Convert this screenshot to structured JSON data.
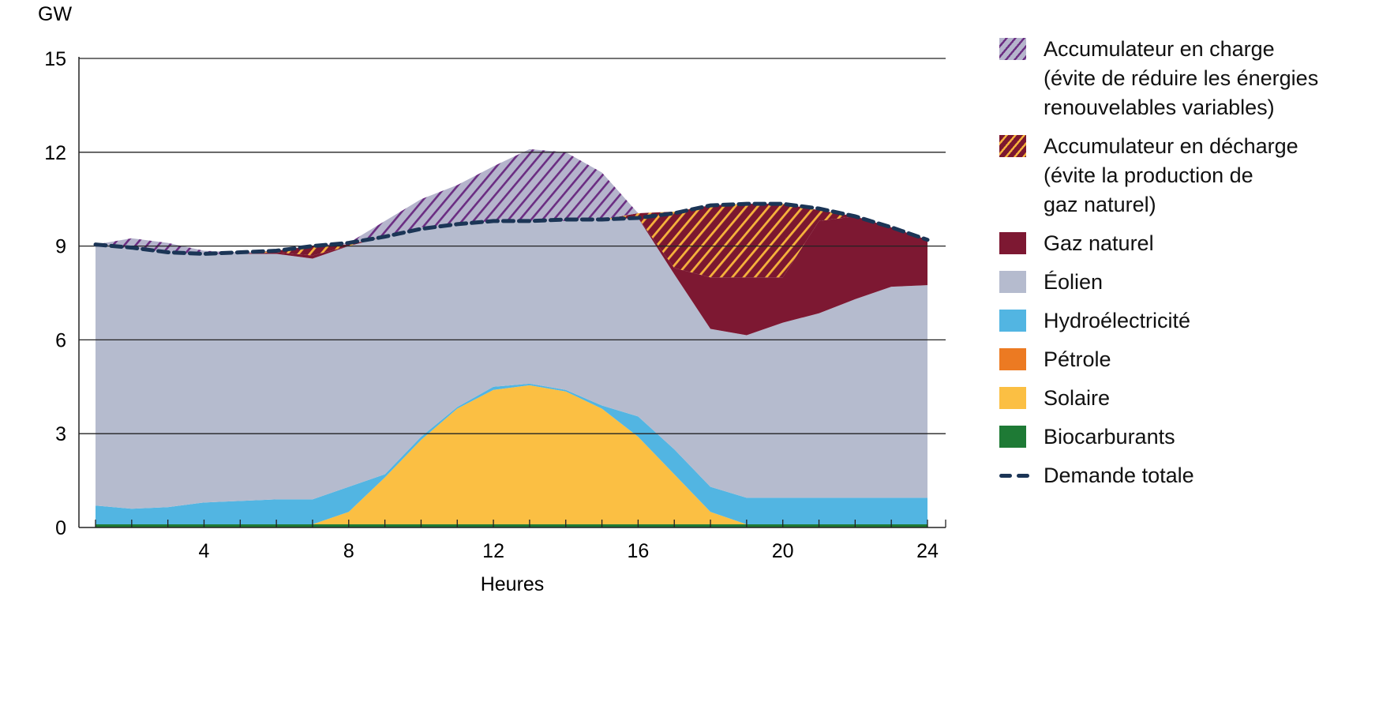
{
  "chart_data": {
    "type": "area",
    "stacked": true,
    "title": "",
    "ylabel": "GW",
    "xlabel": "Heures",
    "ylim": [
      0,
      15
    ],
    "yticks": [
      0,
      3,
      6,
      9,
      12,
      15
    ],
    "xticks": [
      4,
      8,
      12,
      16,
      20,
      24
    ],
    "grid": "horizontal",
    "legend_position": "right",
    "x": [
      1,
      2,
      3,
      4,
      5,
      6,
      7,
      8,
      9,
      10,
      11,
      12,
      13,
      14,
      15,
      16,
      17,
      18,
      19,
      20,
      21,
      22,
      23,
      24
    ],
    "series": [
      {
        "name": "Biocarburants",
        "color": "#1e7a35",
        "values": [
          0.1,
          0.1,
          0.1,
          0.1,
          0.1,
          0.1,
          0.1,
          0.1,
          0.1,
          0.1,
          0.1,
          0.1,
          0.1,
          0.1,
          0.1,
          0.1,
          0.1,
          0.1,
          0.1,
          0.1,
          0.1,
          0.1,
          0.1,
          0.1
        ]
      },
      {
        "name": "Pétrole",
        "color": "#ec7a22",
        "values": [
          0,
          0,
          0,
          0,
          0,
          0,
          0,
          0,
          0,
          0,
          0,
          0,
          0,
          0,
          0,
          0,
          0,
          0,
          0,
          0,
          0,
          0,
          0,
          0
        ]
      },
      {
        "name": "Solaire",
        "color": "#fbbf43",
        "values": [
          0,
          0,
          0,
          0,
          0,
          0,
          0,
          0.4,
          1.5,
          2.7,
          3.7,
          4.3,
          4.45,
          4.25,
          3.7,
          2.8,
          1.6,
          0.4,
          0,
          0,
          0,
          0,
          0,
          0
        ]
      },
      {
        "name": "Hydroélectricité",
        "color": "#52b5e2",
        "values": [
          0.6,
          0.5,
          0.55,
          0.7,
          0.75,
          0.8,
          0.8,
          0.8,
          0.1,
          0.1,
          0.05,
          0.1,
          0.05,
          0.05,
          0.1,
          0.65,
          0.8,
          0.8,
          0.85,
          0.85,
          0.85,
          0.85,
          0.85,
          0.85
        ]
      },
      {
        "name": "Éolien",
        "color": "#b5bbce",
        "values": [
          8.35,
          8.3,
          8.15,
          7.95,
          7.9,
          7.85,
          7.7,
          7.7,
          7.6,
          6.7,
          5.85,
          5.3,
          5.2,
          5.4,
          5.95,
          6.35,
          5.6,
          5.05,
          5.2,
          5.6,
          5.9,
          6.35,
          6.75,
          6.8
        ]
      },
      {
        "name": "Gaz naturel",
        "color": "#7d1832",
        "values": [
          0,
          0,
          0,
          0,
          0,
          0.05,
          0.1,
          0,
          0,
          0,
          0,
          0,
          0,
          0,
          0,
          0,
          0.2,
          1.65,
          1.85,
          1.45,
          2.95,
          2.65,
          1.9,
          1.45
        ]
      },
      {
        "name": "Accumulateur en décharge\n(évite la production de\ngaz naturel)",
        "color": "#7b1730",
        "stripe_color": "#f6b23c",
        "pattern": "hatch",
        "values": [
          0,
          0,
          0,
          0,
          0,
          0.05,
          0.3,
          0.05,
          0,
          0,
          0,
          0,
          0,
          0,
          0,
          0.15,
          1.8,
          2.3,
          2.35,
          2.35,
          0.35,
          0,
          0,
          0
        ]
      },
      {
        "name": "Accumulateur en charge\n(évite de réduire les énergies\nrenouvelables variables)",
        "color": "#b5b4cc",
        "stripe_color": "#6b2d82",
        "pattern": "hatch",
        "values": [
          0,
          0.35,
          0.3,
          0.1,
          0.05,
          0,
          0,
          0.05,
          0.5,
          0.9,
          1.25,
          1.75,
          2.3,
          2.2,
          1.5,
          0,
          0,
          0,
          0,
          0,
          0,
          0,
          0,
          0
        ]
      }
    ],
    "lines": [
      {
        "name": "Demande totale",
        "color": "#1b3556",
        "style": "dashed",
        "values": [
          9.05,
          8.95,
          8.8,
          8.75,
          8.8,
          8.85,
          9.0,
          9.1,
          9.3,
          9.55,
          9.7,
          9.8,
          9.8,
          9.85,
          9.85,
          9.9,
          10.05,
          10.3,
          10.35,
          10.35,
          10.2,
          9.95,
          9.6,
          9.2
        ]
      }
    ]
  },
  "legend": [
    {
      "label": "Accumulateur en charge\n(évite de réduire les énergies\nrenouvelables variables)",
      "swatch": "charge"
    },
    {
      "label": "Accumulateur en décharge\n(évite la production de\ngaz naturel)",
      "swatch": "discharge"
    },
    {
      "label": "Gaz naturel",
      "swatch": "#7d1832"
    },
    {
      "label": "Éolien",
      "swatch": "#b5bbce"
    },
    {
      "label": "Hydroélectricité",
      "swatch": "#52b5e2"
    },
    {
      "label": "Pétrole",
      "swatch": "#ec7a22"
    },
    {
      "label": "Solaire",
      "swatch": "#fbbf43"
    },
    {
      "label": "Biocarburants",
      "swatch": "#1e7a35"
    },
    {
      "label": "Demande totale",
      "swatch": "dash"
    }
  ]
}
